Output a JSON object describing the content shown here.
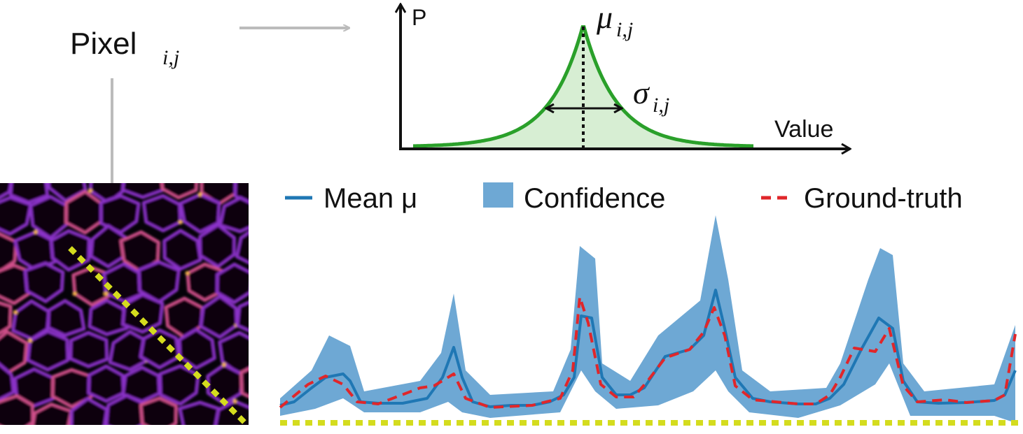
{
  "pixel_label": {
    "text": "Pixel",
    "subscript": "i,j"
  },
  "distribution": {
    "y_axis": "P",
    "x_axis": "Value",
    "mean": "μ",
    "mean_subscript": "i,j",
    "std": "σ",
    "std_subscript": "i,j"
  },
  "legend": {
    "items": [
      "Mean μ",
      "Confidence",
      "Ground-truth"
    ]
  }
}
